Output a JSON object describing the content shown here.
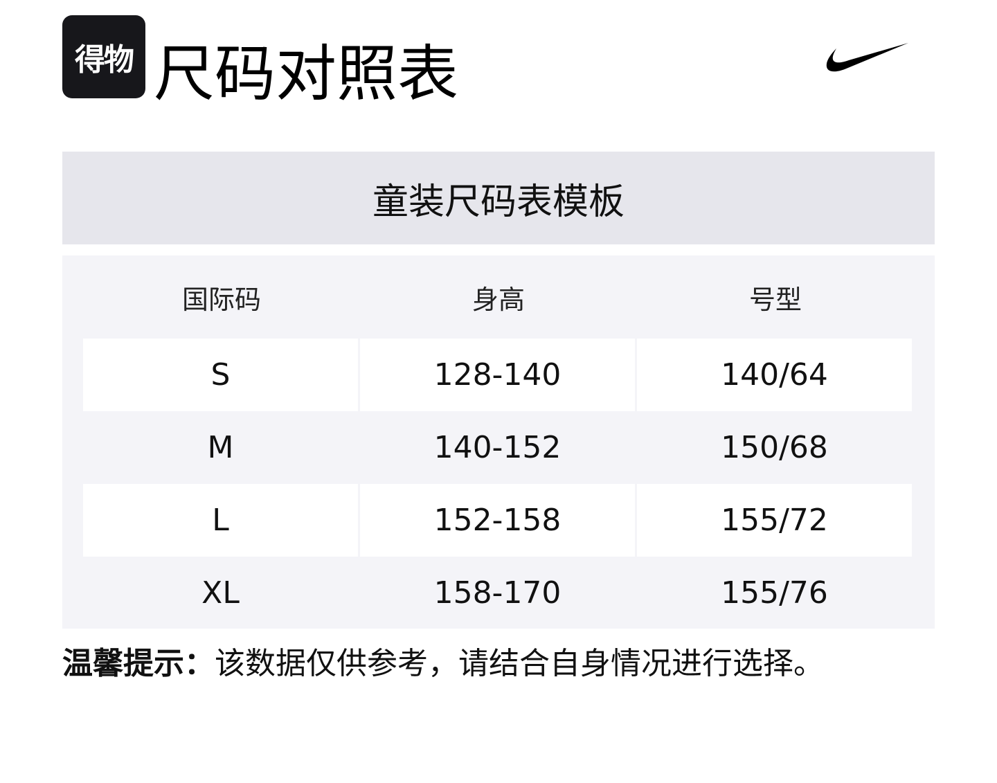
{
  "logo": {
    "text": "得物"
  },
  "title": "尺码对照表",
  "brand_icon": "nike-swoosh-icon",
  "colors": {
    "band": "#e6e6ec",
    "table_bg": "#f4f4f8",
    "logo_bg": "#17171b"
  },
  "table": {
    "caption": "童装尺码表模板",
    "headers": [
      "国际码",
      "身高",
      "号型"
    ],
    "rows": [
      [
        "S",
        "128-140",
        "140/64"
      ],
      [
        "M",
        "140-152",
        "150/68"
      ],
      [
        "L",
        "152-158",
        "155/72"
      ],
      [
        "XL",
        "158-170",
        "155/76"
      ]
    ]
  },
  "note": {
    "label": "温馨提示：",
    "text": "该数据仅供参考，请结合自身情况进行选择。"
  }
}
